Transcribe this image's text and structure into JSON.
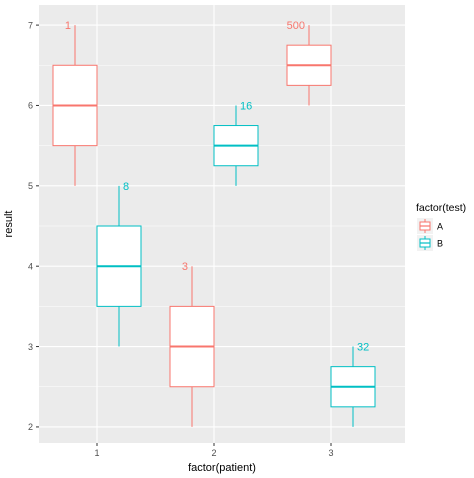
{
  "chart_data": {
    "type": "boxplot",
    "xlabel": "factor(patient)",
    "ylabel": "result",
    "categories": [
      "1",
      "2",
      "3"
    ],
    "ylim": [
      1.8,
      7.25
    ],
    "yticks": [
      2,
      3,
      4,
      5,
      6,
      7
    ],
    "grid": true,
    "legend": {
      "title": "factor(test)",
      "position": "right",
      "entries": [
        "A",
        "B"
      ]
    },
    "series": [
      {
        "name": "A",
        "color": "#F8766D",
        "boxes": [
          {
            "category": "1",
            "min": 5.0,
            "q1": 5.5,
            "median": 6.0,
            "q3": 6.5,
            "max": 7.0,
            "label": "1"
          },
          {
            "category": "2",
            "min": 2.0,
            "q1": 2.5,
            "median": 3.0,
            "q3": 3.5,
            "max": 4.0,
            "label": "3"
          },
          {
            "category": "3",
            "min": 6.0,
            "q1": 6.25,
            "median": 6.5,
            "q3": 6.75,
            "max": 7.0,
            "label": "500"
          }
        ]
      },
      {
        "name": "B",
        "color": "#00BFC4",
        "boxes": [
          {
            "category": "1",
            "min": 3.0,
            "q1": 3.5,
            "median": 4.0,
            "q3": 4.5,
            "max": 5.0,
            "label": "8"
          },
          {
            "category": "2",
            "min": 5.0,
            "q1": 5.25,
            "median": 5.5,
            "q3": 5.75,
            "max": 6.0,
            "label": "16"
          },
          {
            "category": "3",
            "min": 2.0,
            "q1": 2.25,
            "median": 2.5,
            "q3": 2.75,
            "max": 3.0,
            "label": "32"
          }
        ]
      }
    ]
  }
}
